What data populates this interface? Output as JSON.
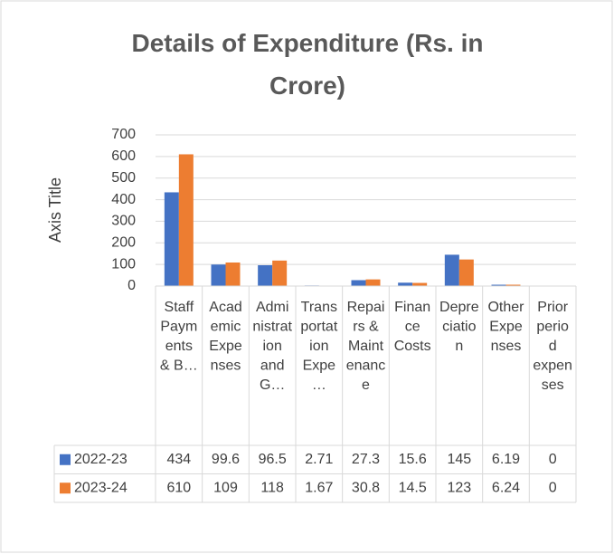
{
  "chart_data": {
    "type": "bar",
    "title": "Details of Expenditure (Rs. in Crore)",
    "y_label": "Axis Title",
    "categories": [
      "Staff Payments & B…",
      "Academic Expenses",
      "Administration and G…",
      "Transportation Expe…",
      "Repairs & Maintenance",
      "Finance Costs",
      "Depreciation",
      "Other Expenses",
      "Prior period expenses"
    ],
    "series": [
      {
        "name": "2022-23",
        "color": "#4472c4",
        "values": [
          434,
          99.6,
          96.5,
          2.71,
          27.3,
          15.6,
          145,
          6.19,
          0
        ]
      },
      {
        "name": "2023-24",
        "color": "#ed7d31",
        "values": [
          610,
          109,
          118,
          1.67,
          30.8,
          14.5,
          123,
          6.24,
          0
        ]
      }
    ],
    "ylim": [
      0,
      700
    ],
    "yticks": [
      0,
      100,
      200,
      300,
      400,
      500,
      600,
      700
    ],
    "grid": true,
    "data_table": true
  }
}
